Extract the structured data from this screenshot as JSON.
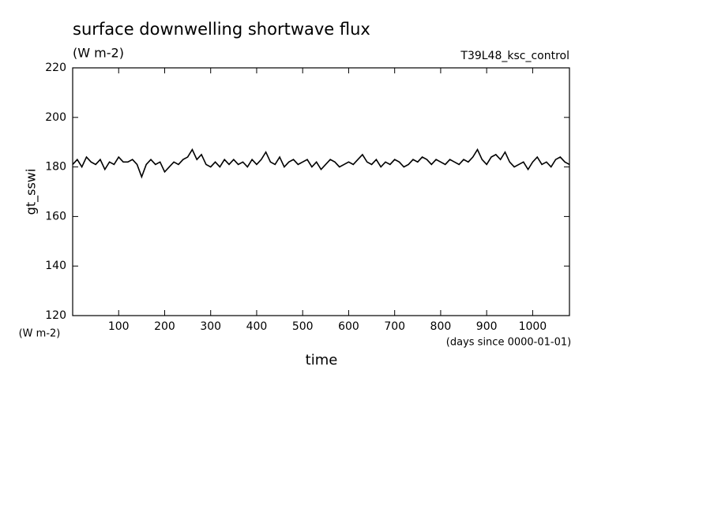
{
  "chart_data": {
    "type": "line",
    "title": "surface downwelling shortwave flux",
    "units": "(W m-2)",
    "annotation": "T39L48_ksc_control",
    "ylabel": "gt_sswi",
    "yunits": "(W m-2)",
    "xlabel": "time",
    "xunits": "(days since 0000-01-01)",
    "color": "#000000",
    "x": [
      0,
      10,
      20,
      30,
      40,
      50,
      60,
      70,
      80,
      90,
      100,
      110,
      120,
      130,
      140,
      150,
      160,
      170,
      180,
      190,
      200,
      210,
      220,
      230,
      240,
      250,
      260,
      270,
      280,
      290,
      300,
      310,
      320,
      330,
      340,
      350,
      360,
      370,
      380,
      390,
      400,
      410,
      420,
      430,
      440,
      450,
      460,
      470,
      480,
      490,
      500,
      510,
      520,
      530,
      540,
      550,
      560,
      570,
      580,
      590,
      600,
      610,
      620,
      630,
      640,
      650,
      660,
      670,
      680,
      690,
      700,
      710,
      720,
      730,
      740,
      750,
      760,
      770,
      780,
      790,
      800,
      810,
      820,
      830,
      840,
      850,
      860,
      870,
      880,
      890,
      900,
      910,
      920,
      930,
      940,
      950,
      960,
      970,
      980,
      990,
      1000,
      1010,
      1020,
      1030,
      1040,
      1050,
      1060,
      1070,
      1080
    ],
    "values": [
      181,
      183,
      180,
      184,
      182,
      181,
      183,
      179,
      182,
      181,
      184,
      182,
      182,
      183,
      181,
      176,
      181,
      183,
      181,
      182,
      178,
      180,
      182,
      181,
      183,
      184,
      187,
      183,
      185,
      181,
      180,
      182,
      180,
      183,
      181,
      183,
      181,
      182,
      180,
      183,
      181,
      183,
      186,
      182,
      181,
      184,
      180,
      182,
      183,
      181,
      182,
      183,
      180,
      182,
      179,
      181,
      183,
      182,
      180,
      181,
      182,
      181,
      183,
      185,
      182,
      181,
      183,
      180,
      182,
      181,
      183,
      182,
      180,
      181,
      183,
      182,
      184,
      183,
      181,
      183,
      182,
      181,
      183,
      182,
      181,
      183,
      182,
      184,
      187,
      183,
      181,
      184,
      185,
      183,
      186,
      182,
      180,
      181,
      182,
      179,
      182,
      184,
      181,
      182,
      180,
      183,
      184,
      182,
      181
    ],
    "xlim": [
      0,
      1080
    ],
    "ylim": [
      120,
      220
    ],
    "xticks": [
      100,
      200,
      300,
      400,
      500,
      600,
      700,
      800,
      900,
      1000
    ],
    "yticks": [
      120,
      140,
      160,
      180,
      200,
      220
    ]
  }
}
